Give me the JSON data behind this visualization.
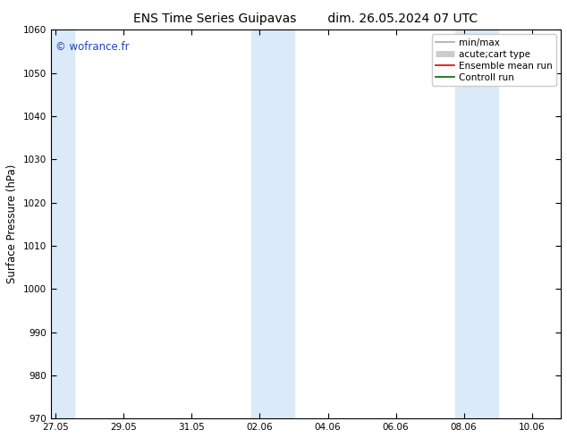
{
  "title_left": "ENS Time Series Guipavas",
  "title_right": "dim. 26.05.2024 07 UTC",
  "ylabel": "Surface Pressure (hPa)",
  "ylim": [
    970,
    1060
  ],
  "yticks": [
    970,
    980,
    990,
    1000,
    1010,
    1020,
    1030,
    1040,
    1050,
    1060
  ],
  "xtick_labels": [
    "27.05",
    "29.05",
    "31.05",
    "02.06",
    "04.06",
    "06.06",
    "08.06",
    "10.06"
  ],
  "xtick_positions": [
    0,
    2,
    4,
    6,
    8,
    10,
    12,
    14
  ],
  "background_color": "#ffffff",
  "plot_bg_color": "#ffffff",
  "shaded_bands": [
    {
      "xmin": -0.15,
      "xmax": 0.55
    },
    {
      "xmin": 5.75,
      "xmax": 7.0
    },
    {
      "xmin": 11.75,
      "xmax": 13.0
    }
  ],
  "shaded_color": "#daeaf8",
  "watermark": "© wofrance.fr",
  "watermark_color": "#2244bb",
  "legend_items": [
    {
      "label": "min/max",
      "color": "#aaaaaa",
      "lw": 1.2,
      "thick": false
    },
    {
      "label": "acute;cart type",
      "color": "#cccccc",
      "lw": 5,
      "thick": true
    },
    {
      "label": "Ensemble mean run",
      "color": "#dd0000",
      "lw": 1.2,
      "thick": false
    },
    {
      "label": "Controll run",
      "color": "#006600",
      "lw": 1.2,
      "thick": false
    }
  ],
  "title_fontsize": 10,
  "tick_fontsize": 7.5,
  "label_fontsize": 8.5,
  "watermark_fontsize": 8.5,
  "legend_fontsize": 7.5,
  "xmin": -0.15,
  "xmax": 14.85
}
